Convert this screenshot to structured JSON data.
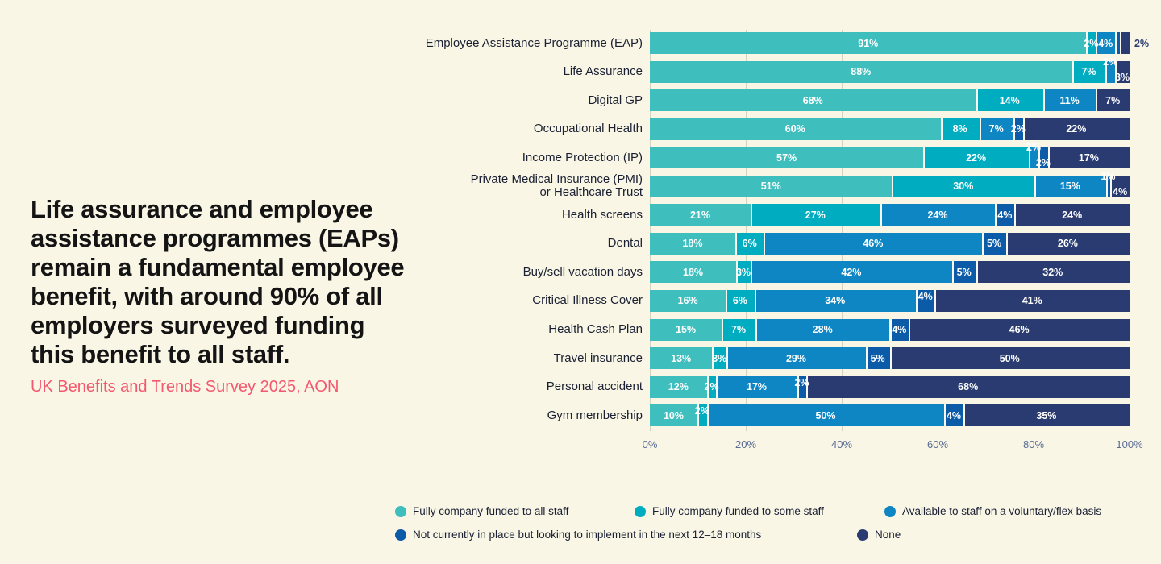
{
  "headline": {
    "text": "Life assurance and employee\nassistance programmes (EAPs)\nremain a fundamental employee\nbenefit, with around 90% of all\nemployers surveyed funding\nthis benefit to all staff.",
    "source": "UK Benefits and Trends Survey 2025, AON",
    "text_color": "#141414",
    "source_color": "#F4586E"
  },
  "colors": {
    "background": "#F9F6E6",
    "series": [
      "#3FBEBE",
      "#00ADC0",
      "#0E86C4",
      "#0B5BA9",
      "#2A3B72"
    ],
    "bar_label": "#FFFFFF",
    "outside_label": "#2A3B72",
    "row_label": "#1A2032",
    "axis_label": "#5A6C94",
    "segment_separator": "#FAF8EC",
    "gridline": "rgba(125,120,95,0.28)"
  },
  "chart_data": {
    "type": "bar",
    "variant": "horizontal-stacked-100",
    "unit": "%",
    "grid": true,
    "legend_position": "bottom",
    "series_names": [
      "Fully company funded to all staff",
      "Fully company funded to some staff",
      "Available to staff on a voluntary/flex basis",
      "Not currently in place but looking to implement in the next 12–18 months",
      "None"
    ],
    "x_axis": {
      "ticks": [
        "0%",
        "20%",
        "40%",
        "60%",
        "80%",
        "100%"
      ],
      "min": 0,
      "max": 100
    },
    "rows": [
      {
        "label": "Employee Assistance Programme (EAP)",
        "values": [
          91,
          2,
          4,
          1,
          2
        ],
        "labels": [
          "91%",
          "2%",
          "4%",
          "",
          "2%"
        ],
        "pos": [
          "c",
          "c",
          "c",
          "hide",
          "out"
        ]
      },
      {
        "label": "Life Assurance",
        "values": [
          88,
          7,
          2,
          0,
          3
        ],
        "labels": [
          "88%",
          "7%",
          "2%",
          "",
          "3%"
        ],
        "pos": [
          "c",
          "c",
          "up",
          "hide",
          "down"
        ]
      },
      {
        "label": "Digital GP",
        "values": [
          68,
          14,
          11,
          0,
          7
        ],
        "labels": [
          "68%",
          "14%",
          "11%",
          "",
          "7%"
        ],
        "pos": [
          "c",
          "c",
          "c",
          "hide",
          "c"
        ]
      },
      {
        "label": "Occupational Health",
        "values": [
          60,
          8,
          7,
          2,
          22
        ],
        "labels": [
          "60%",
          "8%",
          "7%",
          "2%",
          "22%"
        ],
        "pos": [
          "c",
          "c",
          "c",
          "c",
          "c"
        ]
      },
      {
        "label": "Income Protection (IP)",
        "values": [
          57,
          22,
          2,
          2,
          17
        ],
        "labels": [
          "57%",
          "22%",
          "2%",
          "2%",
          "17%"
        ],
        "pos": [
          "c",
          "c",
          "up",
          "down",
          "c"
        ]
      },
      {
        "label": "Private Medical Insurance (PMI)\nor Healthcare Trust",
        "values": [
          51,
          30,
          15,
          1,
          4
        ],
        "labels": [
          "51%",
          "30%",
          "15%",
          "1%",
          "4%"
        ],
        "pos": [
          "c",
          "c",
          "c",
          "up",
          "down"
        ]
      },
      {
        "label": "Health screens",
        "values": [
          21,
          27,
          24,
          4,
          24
        ],
        "labels": [
          "21%",
          "27%",
          "24%",
          "4%",
          "24%"
        ],
        "pos": [
          "c",
          "c",
          "c",
          "c",
          "c"
        ]
      },
      {
        "label": "Dental",
        "values": [
          18,
          6,
          46,
          5,
          26
        ],
        "labels": [
          "18%",
          "6%",
          "46%",
          "5%",
          "26%"
        ],
        "pos": [
          "c",
          "c",
          "c",
          "c",
          "c"
        ]
      },
      {
        "label": "Buy/sell vacation days",
        "values": [
          18,
          3,
          42,
          5,
          32
        ],
        "labels": [
          "18%",
          "3%",
          "42%",
          "5%",
          "32%"
        ],
        "pos": [
          "c",
          "c",
          "c",
          "c",
          "c"
        ]
      },
      {
        "label": "Critical Illness Cover",
        "values": [
          16,
          6,
          34,
          4,
          41
        ],
        "labels": [
          "16%",
          "6%",
          "34%",
          "4%",
          "41%"
        ],
        "pos": [
          "c",
          "c",
          "c",
          "hi",
          "c"
        ]
      },
      {
        "label": "Health Cash Plan",
        "values": [
          15,
          7,
          28,
          4,
          46
        ],
        "labels": [
          "15%",
          "7%",
          "28%",
          "4%",
          "46%"
        ],
        "pos": [
          "c",
          "c",
          "c",
          "c",
          "c"
        ]
      },
      {
        "label": "Travel insurance",
        "values": [
          13,
          3,
          29,
          5,
          50
        ],
        "labels": [
          "13%",
          "3%",
          "29%",
          "5%",
          "50%"
        ],
        "pos": [
          "c",
          "c",
          "c",
          "c",
          "c"
        ]
      },
      {
        "label": "Personal accident",
        "values": [
          12,
          2,
          17,
          2,
          68
        ],
        "labels": [
          "12%",
          "2%",
          "17%",
          "2%",
          "68%"
        ],
        "pos": [
          "c",
          "c",
          "c",
          "hi",
          "c"
        ]
      },
      {
        "label": "Gym membership",
        "values": [
          10,
          2,
          50,
          4,
          35
        ],
        "labels": [
          "10%",
          "2%",
          "50%",
          "4%",
          "35%"
        ],
        "pos": [
          "c",
          "hi",
          "c",
          "c",
          "c"
        ]
      }
    ]
  },
  "legend": {
    "rows": [
      [
        {
          "series": 0
        },
        {
          "series": 1
        },
        {
          "series": 2
        }
      ],
      [
        {
          "series": 3
        },
        {
          "series": 4
        }
      ]
    ]
  }
}
